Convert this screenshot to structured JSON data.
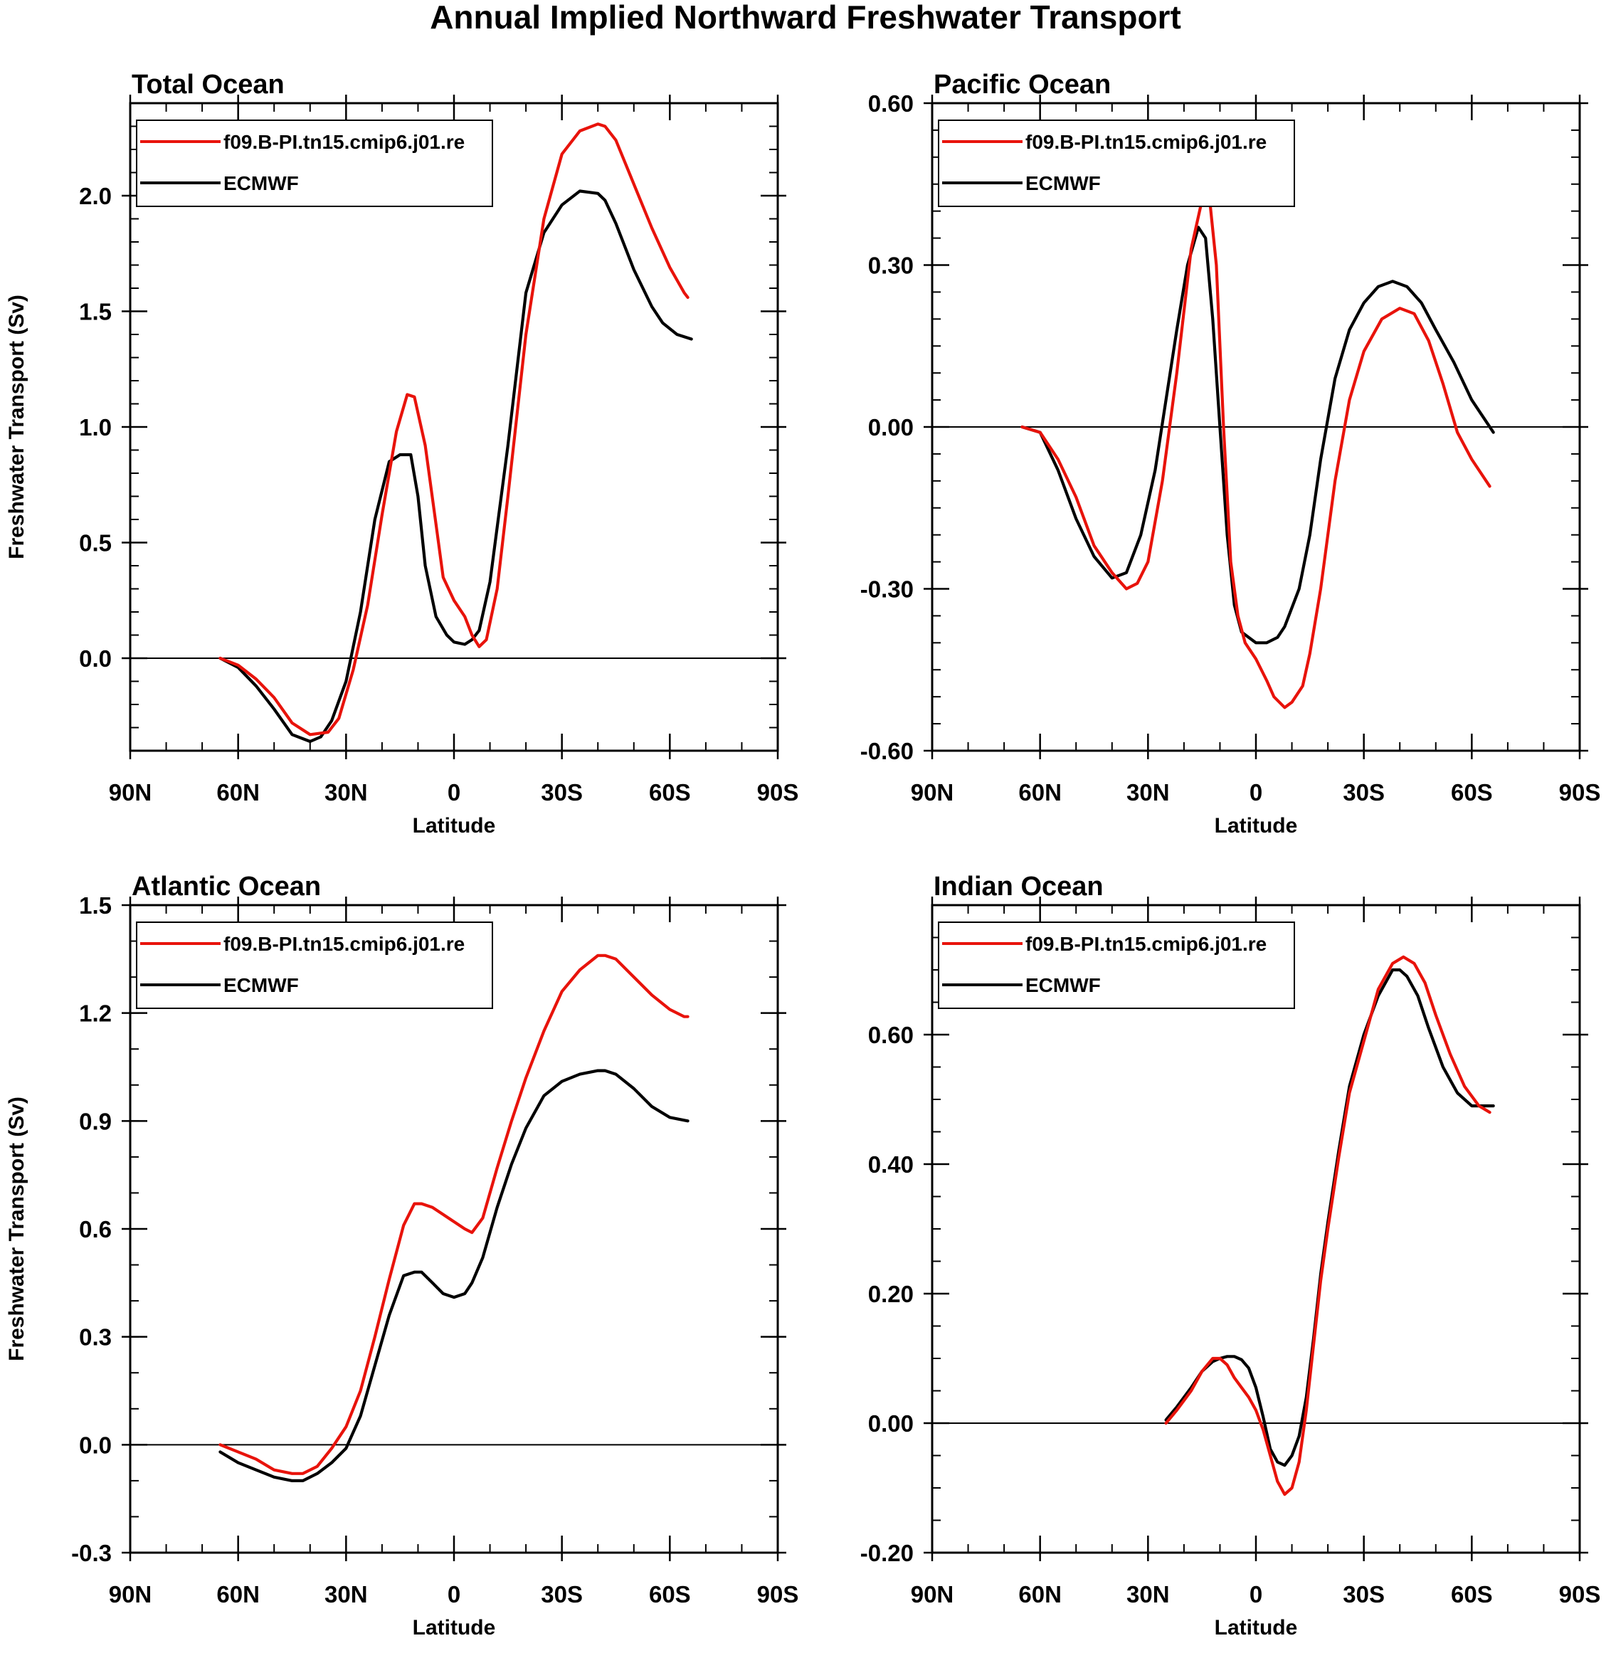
{
  "figure_title": "Annual Implied Northward Freshwater Transport",
  "colors": {
    "model": "#e8130b",
    "obs": "#000000",
    "zero_line": "#000000",
    "frame": "#000000"
  },
  "chart_data": [
    {
      "type": "line",
      "title": "Total Ocean",
      "xlabel": "Latitude",
      "ylabel": "Freshwater Transport (Sv)",
      "x_tick_labels": [
        "90N",
        "60N",
        "30N",
        "0",
        "30S",
        "60S",
        "90S"
      ],
      "xlim": [
        90,
        -90
      ],
      "ylim": [
        -0.4,
        2.4
      ],
      "y_ticks": [
        0.0,
        0.5,
        1.0,
        1.5,
        2.0
      ],
      "y_tick_labels": [
        "0.0",
        "0.5",
        "1.0",
        "1.5",
        "2.0"
      ],
      "y_minor_step": 0.1,
      "legend": "top-left",
      "series": [
        {
          "name": "f09.B-PI.tn15.cmip6.j01.re",
          "color": "#e8130b",
          "x": [
            65,
            60,
            55,
            50,
            45,
            40,
            35,
            32,
            28,
            24,
            20,
            16,
            13,
            11,
            8,
            5,
            3,
            0,
            -3,
            -5,
            -7,
            -9,
            -12,
            -15,
            -20,
            -25,
            -30,
            -35,
            -40,
            -42,
            -45,
            -50,
            -55,
            -60,
            -64,
            -65
          ],
          "y": [
            0.0,
            -0.03,
            -0.09,
            -0.17,
            -0.28,
            -0.33,
            -0.32,
            -0.26,
            -0.05,
            0.23,
            0.62,
            0.98,
            1.14,
            1.13,
            0.92,
            0.58,
            0.35,
            0.25,
            0.18,
            0.1,
            0.05,
            0.08,
            0.3,
            0.7,
            1.4,
            1.9,
            2.18,
            2.28,
            2.31,
            2.3,
            2.24,
            2.05,
            1.86,
            1.69,
            1.58,
            1.56
          ]
        },
        {
          "name": "ECMWF",
          "color": "#000000",
          "x": [
            65,
            60,
            55,
            50,
            45,
            40,
            37,
            34,
            30,
            26,
            22,
            18,
            15,
            12,
            10,
            8,
            5,
            2,
            0,
            -3,
            -5,
            -7,
            -10,
            -15,
            -20,
            -25,
            -30,
            -35,
            -40,
            -42,
            -45,
            -50,
            -55,
            -58,
            -62,
            -66
          ],
          "y": [
            0.0,
            -0.04,
            -0.12,
            -0.22,
            -0.33,
            -0.36,
            -0.34,
            -0.27,
            -0.1,
            0.2,
            0.6,
            0.85,
            0.88,
            0.88,
            0.7,
            0.4,
            0.18,
            0.1,
            0.07,
            0.06,
            0.08,
            0.12,
            0.33,
            0.92,
            1.58,
            1.84,
            1.96,
            2.02,
            2.01,
            1.98,
            1.88,
            1.68,
            1.52,
            1.45,
            1.4,
            1.38
          ]
        }
      ]
    },
    {
      "type": "line",
      "title": "Pacific Ocean",
      "xlabel": "Latitude",
      "ylabel": "",
      "x_tick_labels": [
        "90N",
        "60N",
        "30N",
        "0",
        "30S",
        "60S",
        "90S"
      ],
      "xlim": [
        90,
        -90
      ],
      "ylim": [
        -0.6,
        0.6
      ],
      "y_ticks": [
        -0.6,
        -0.3,
        0.0,
        0.3,
        0.6
      ],
      "y_tick_labels": [
        "-0.60",
        "-0.30",
        "0.00",
        "0.30",
        "0.60"
      ],
      "y_minor_step": 0.05,
      "legend": "top-left",
      "series": [
        {
          "name": "f09.B-PI.tn15.cmip6.j01.re",
          "color": "#e8130b",
          "x": [
            65,
            60,
            55,
            50,
            45,
            40,
            36,
            33,
            30,
            26,
            22,
            18,
            15,
            13,
            11,
            9,
            7,
            5,
            3,
            0,
            -3,
            -5,
            -8,
            -10,
            -13,
            -15,
            -18,
            -22,
            -26,
            -30,
            -35,
            -40,
            -44,
            -48,
            -52,
            -56,
            -60,
            -65
          ],
          "y": [
            0.0,
            -0.01,
            -0.06,
            -0.13,
            -0.22,
            -0.27,
            -0.3,
            -0.29,
            -0.25,
            -0.1,
            0.1,
            0.33,
            0.42,
            0.43,
            0.3,
            0.0,
            -0.25,
            -0.35,
            -0.4,
            -0.43,
            -0.47,
            -0.5,
            -0.52,
            -0.51,
            -0.48,
            -0.42,
            -0.3,
            -0.1,
            0.05,
            0.14,
            0.2,
            0.22,
            0.21,
            0.16,
            0.08,
            -0.01,
            -0.06,
            -0.11
          ]
        },
        {
          "name": "ECMWF",
          "color": "#000000",
          "x": [
            65,
            60,
            55,
            50,
            45,
            40,
            36,
            32,
            28,
            25,
            22,
            19,
            16,
            14,
            12,
            10,
            8,
            6,
            4,
            2,
            0,
            -3,
            -6,
            -8,
            -12,
            -15,
            -18,
            -22,
            -26,
            -30,
            -34,
            -38,
            -42,
            -46,
            -50,
            -55,
            -60,
            -66
          ],
          "y": [
            0.0,
            -0.01,
            -0.08,
            -0.17,
            -0.24,
            -0.28,
            -0.27,
            -0.2,
            -0.08,
            0.05,
            0.18,
            0.3,
            0.37,
            0.35,
            0.2,
            0.0,
            -0.2,
            -0.33,
            -0.38,
            -0.39,
            -0.4,
            -0.4,
            -0.39,
            -0.37,
            -0.3,
            -0.2,
            -0.06,
            0.09,
            0.18,
            0.23,
            0.26,
            0.27,
            0.26,
            0.23,
            0.18,
            0.12,
            0.05,
            -0.01
          ]
        }
      ]
    },
    {
      "type": "line",
      "title": "Atlantic Ocean",
      "xlabel": "Latitude",
      "ylabel": "Freshwater Transport (Sv)",
      "x_tick_labels": [
        "90N",
        "60N",
        "30N",
        "0",
        "30S",
        "60S",
        "90S"
      ],
      "xlim": [
        90,
        -90
      ],
      "ylim": [
        -0.3,
        1.5
      ],
      "y_ticks": [
        -0.3,
        0.0,
        0.3,
        0.6,
        0.9,
        1.2,
        1.5
      ],
      "y_tick_labels": [
        "-0.3",
        "0.0",
        "0.3",
        "0.6",
        "0.9",
        "1.2",
        "1.5"
      ],
      "y_minor_step": 0.1,
      "legend": "top-left",
      "series": [
        {
          "name": "f09.B-PI.tn15.cmip6.j01.re",
          "color": "#e8130b",
          "x": [
            65,
            60,
            55,
            50,
            45,
            42,
            38,
            34,
            30,
            26,
            22,
            18,
            14,
            11,
            9,
            6,
            3,
            0,
            -3,
            -5,
            -8,
            -12,
            -16,
            -20,
            -25,
            -30,
            -35,
            -40,
            -42,
            -45,
            -50,
            -55,
            -60,
            -64,
            -65
          ],
          "y": [
            0.0,
            -0.02,
            -0.04,
            -0.07,
            -0.08,
            -0.08,
            -0.06,
            -0.01,
            0.05,
            0.15,
            0.3,
            0.46,
            0.61,
            0.67,
            0.67,
            0.66,
            0.64,
            0.62,
            0.6,
            0.59,
            0.63,
            0.77,
            0.9,
            1.02,
            1.15,
            1.26,
            1.32,
            1.36,
            1.36,
            1.35,
            1.3,
            1.25,
            1.21,
            1.19,
            1.19
          ]
        },
        {
          "name": "ECMWF",
          "color": "#000000",
          "x": [
            65,
            60,
            55,
            50,
            45,
            42,
            38,
            34,
            30,
            26,
            22,
            18,
            14,
            11,
            9,
            6,
            3,
            0,
            -3,
            -5,
            -8,
            -12,
            -16,
            -20,
            -25,
            -30,
            -35,
            -40,
            -42,
            -45,
            -50,
            -55,
            -60,
            -65
          ],
          "y": [
            -0.02,
            -0.05,
            -0.07,
            -0.09,
            -0.1,
            -0.1,
            -0.08,
            -0.05,
            -0.01,
            0.08,
            0.22,
            0.36,
            0.47,
            0.48,
            0.48,
            0.45,
            0.42,
            0.41,
            0.42,
            0.45,
            0.52,
            0.66,
            0.78,
            0.88,
            0.97,
            1.01,
            1.03,
            1.04,
            1.04,
            1.03,
            0.99,
            0.94,
            0.91,
            0.9
          ]
        }
      ]
    },
    {
      "type": "line",
      "title": "Indian Ocean",
      "xlabel": "Latitude",
      "ylabel": "",
      "x_tick_labels": [
        "90N",
        "60N",
        "30N",
        "0",
        "30S",
        "60S",
        "90S"
      ],
      "xlim": [
        90,
        -90
      ],
      "ylim": [
        -0.2,
        0.8
      ],
      "y_ticks": [
        -0.2,
        0.0,
        0.2,
        0.4,
        0.6
      ],
      "y_tick_labels": [
        "-0.20",
        "0.00",
        "0.20",
        "0.40",
        "0.60"
      ],
      "y_minor_step": 0.05,
      "legend": "top-left",
      "series": [
        {
          "name": "f09.B-PI.tn15.cmip6.j01.re",
          "color": "#e8130b",
          "x": [
            25,
            22,
            18,
            15,
            12,
            10,
            8,
            6,
            4,
            2,
            0,
            -2,
            -4,
            -6,
            -8,
            -10,
            -12,
            -14,
            -16,
            -18,
            -20,
            -23,
            -26,
            -30,
            -34,
            -38,
            -41,
            -44,
            -47,
            -50,
            -54,
            -58,
            -62,
            -65
          ],
          "y": [
            0.0,
            0.02,
            0.05,
            0.08,
            0.1,
            0.1,
            0.09,
            0.07,
            0.055,
            0.04,
            0.02,
            -0.01,
            -0.05,
            -0.09,
            -0.11,
            -0.1,
            -0.06,
            0.02,
            0.12,
            0.22,
            0.3,
            0.41,
            0.51,
            0.59,
            0.67,
            0.71,
            0.72,
            0.71,
            0.68,
            0.63,
            0.57,
            0.52,
            0.49,
            0.48
          ]
        },
        {
          "name": "ECMWF",
          "color": "#000000",
          "x": [
            25,
            22,
            18,
            15,
            12,
            10,
            8,
            6,
            4,
            2,
            0,
            -2,
            -4,
            -6,
            -8,
            -10,
            -12,
            -14,
            -16,
            -18,
            -20,
            -23,
            -26,
            -30,
            -34,
            -38,
            -40,
            -42,
            -45,
            -48,
            -52,
            -56,
            -60,
            -63,
            -66
          ],
          "y": [
            0.005,
            0.025,
            0.055,
            0.08,
            0.095,
            0.1,
            0.103,
            0.103,
            0.098,
            0.085,
            0.055,
            0.01,
            -0.04,
            -0.06,
            -0.065,
            -0.05,
            -0.02,
            0.04,
            0.13,
            0.23,
            0.31,
            0.42,
            0.52,
            0.6,
            0.66,
            0.7,
            0.7,
            0.69,
            0.66,
            0.61,
            0.55,
            0.51,
            0.49,
            0.49,
            0.49
          ]
        }
      ]
    }
  ]
}
